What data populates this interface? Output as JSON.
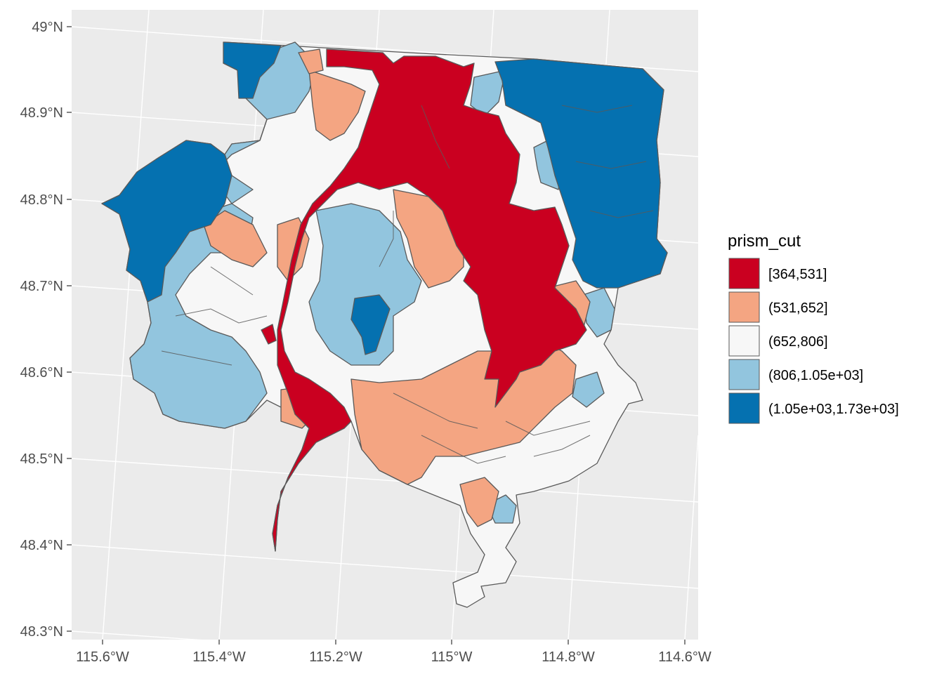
{
  "map": {
    "x_axis_ticks": [
      "115.6°W",
      "115.4°W",
      "115.2°W",
      "115°W",
      "114.8°W",
      "114.6°W"
    ],
    "y_axis_ticks": [
      "49°N",
      "48.9°N",
      "48.8°N",
      "48.7°N",
      "48.6°N",
      "48.5°N",
      "48.4°N",
      "48.3°N"
    ],
    "panel_background": "#ebebeb",
    "grid_color": "#ffffff",
    "border_color": "#595959"
  },
  "legend": {
    "title": "prism_cut",
    "items": [
      {
        "label": "[364,531]",
        "color": "#ca0020"
      },
      {
        "label": "(531,652]",
        "color": "#f4a582"
      },
      {
        "label": "(652,806]",
        "color": "#f7f7f7"
      },
      {
        "label": "(806,1.05e+03]",
        "color": "#92c5de"
      },
      {
        "label": "(1.05e+03,1.73e+03]",
        "color": "#0571b0"
      }
    ]
  }
}
